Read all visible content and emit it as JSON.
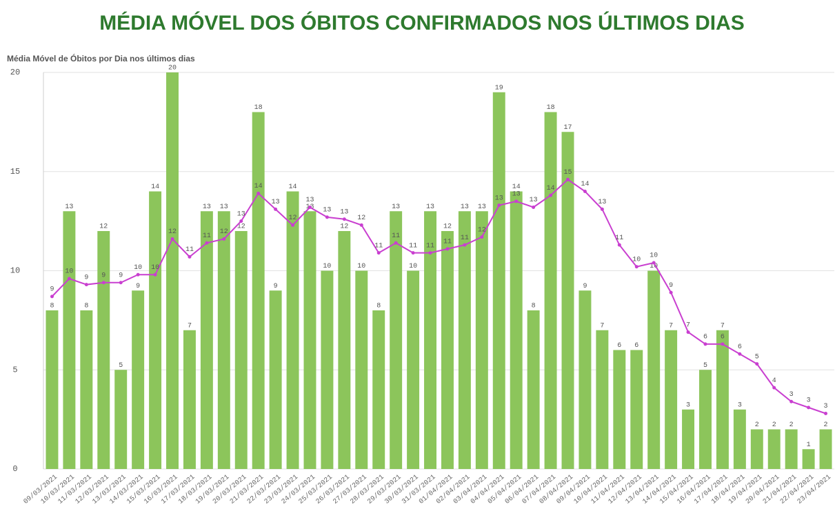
{
  "chart_data": {
    "type": "combo",
    "title": "MÉDIA MÓVEL DOS ÓBITOS CONFIRMADOS NOS ÚLTIMOS DIAS",
    "subtitle": "Média Móvel de Óbitos por Dia nos últimos dias",
    "categories": [
      "09/03/2021",
      "10/03/2021",
      "11/03/2021",
      "12/03/2021",
      "13/03/2021",
      "14/03/2021",
      "15/03/2021",
      "16/03/2021",
      "17/03/2021",
      "18/03/2021",
      "19/03/2021",
      "20/03/2021",
      "21/03/2021",
      "22/03/2021",
      "23/03/2021",
      "24/03/2021",
      "25/03/2021",
      "26/03/2021",
      "27/03/2021",
      "28/03/2021",
      "29/03/2021",
      "30/03/2021",
      "31/03/2021",
      "01/04/2021",
      "02/04/2021",
      "03/04/2021",
      "04/04/2021",
      "05/04/2021",
      "06/04/2021",
      "07/04/2021",
      "08/04/2021",
      "09/04/2021",
      "10/04/2021",
      "11/04/2021",
      "12/04/2021",
      "13/04/2021",
      "14/04/2021",
      "15/04/2021",
      "16/04/2021",
      "17/04/2021",
      "18/04/2021",
      "19/04/2021",
      "20/04/2021",
      "21/04/2021",
      "22/04/2021",
      "23/04/2021"
    ],
    "series": [
      {
        "type": "bar",
        "color": "#8cc55b",
        "values": [
          8,
          13,
          8,
          12,
          5,
          9,
          14,
          20,
          7,
          13,
          13,
          12,
          18,
          9,
          14,
          13,
          10,
          12,
          10,
          8,
          13,
          10,
          13,
          12,
          13,
          13,
          19,
          14,
          8,
          18,
          17,
          9,
          7,
          6,
          6,
          10,
          7,
          3,
          5,
          7,
          3,
          2,
          2,
          2,
          1,
          2
        ]
      },
      {
        "type": "line",
        "color": "#c93fd0",
        "values": [
          8.7,
          9.6,
          9.3,
          9.4,
          9.4,
          9.8,
          9.8,
          11.6,
          10.7,
          11.4,
          11.6,
          12.5,
          13.9,
          13.1,
          12.3,
          13.2,
          12.7,
          12.6,
          12.3,
          10.9,
          11.4,
          10.9,
          10.9,
          11.1,
          11.3,
          11.7,
          13.3,
          13.5,
          13.2,
          13.8,
          14.6,
          14.0,
          13.1,
          11.3,
          10.2,
          10.4,
          8.9,
          6.9,
          6.3,
          6.3,
          5.8,
          5.3,
          4.1,
          3.4,
          3.1,
          2.8
        ],
        "value_labels": [
          "9",
          "10",
          "9",
          "9",
          "9",
          "10",
          "10",
          "12",
          "11",
          "11",
          "12",
          "13",
          "14",
          "13",
          "12",
          "13",
          "13",
          "13",
          "12",
          "11",
          "11",
          "11",
          "11",
          "11",
          "11",
          "12",
          "13",
          "13",
          "13",
          "14",
          "15",
          "14",
          "13",
          "11",
          "10",
          "10",
          "9",
          "7",
          "6",
          "6",
          "6",
          "5",
          "4",
          "3",
          "3",
          "3"
        ]
      }
    ],
    "ylim": [
      0,
      20
    ],
    "yticks": [
      0,
      5,
      10,
      15,
      20
    ],
    "grid": true
  }
}
